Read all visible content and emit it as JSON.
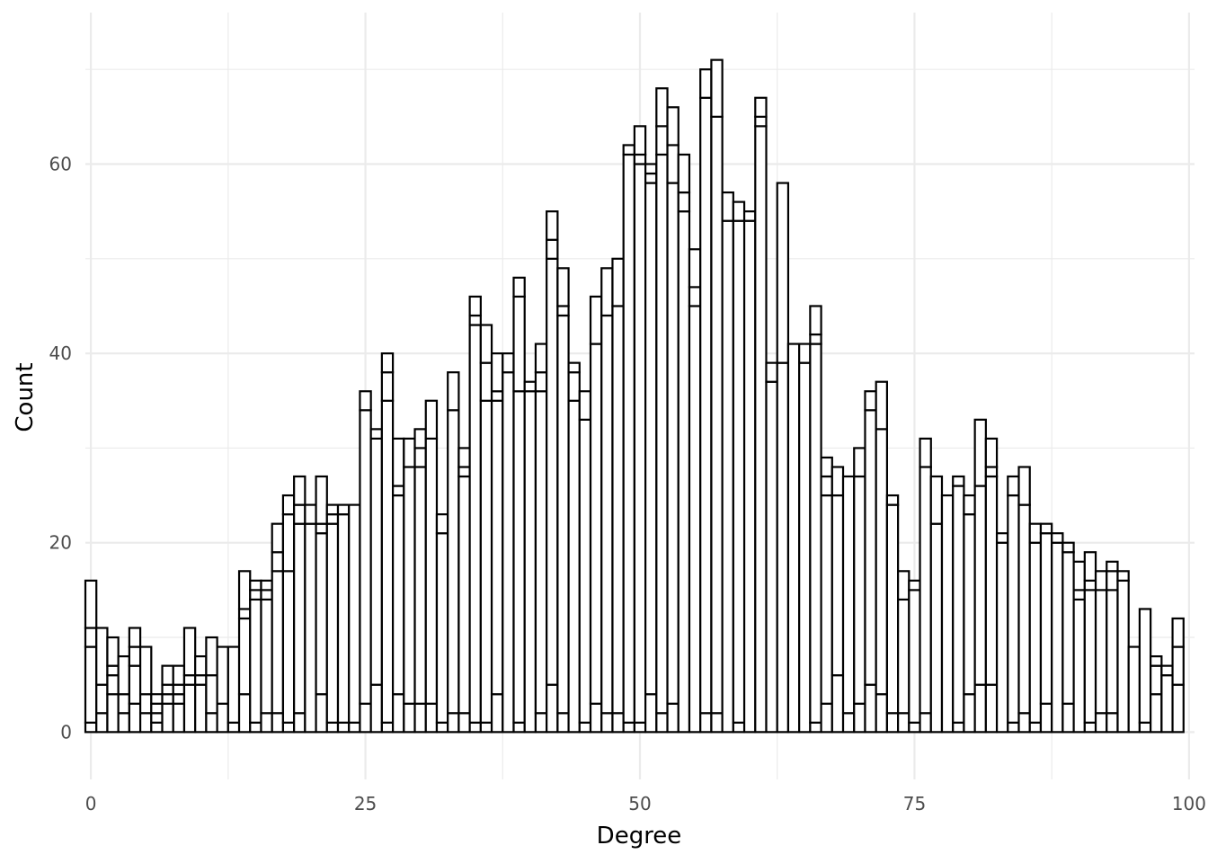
{
  "chart_data": {
    "type": "bar",
    "subtype": "stacked-histogram",
    "title": "",
    "xlabel": "Degree",
    "ylabel": "Count",
    "xlim": [
      -0.5,
      100.5
    ],
    "ylim": [
      -5,
      76
    ],
    "x_ticks": [
      0,
      25,
      50,
      75,
      100
    ],
    "x_tick_labels": [
      "0",
      "25",
      "50",
      "75",
      "100"
    ],
    "y_ticks": [
      0,
      20,
      40,
      60
    ],
    "y_tick_labels": [
      "0",
      "20",
      "40",
      "60"
    ],
    "grid": true,
    "bar_fill": "#ffffff",
    "bar_stroke": "#000000",
    "grid_color": "#ebebeb",
    "x": [
      0,
      1,
      2,
      3,
      4,
      5,
      6,
      7,
      8,
      9,
      10,
      11,
      12,
      13,
      14,
      15,
      16,
      17,
      18,
      19,
      20,
      21,
      22,
      23,
      24,
      25,
      26,
      27,
      28,
      29,
      30,
      31,
      32,
      33,
      34,
      35,
      36,
      37,
      38,
      39,
      40,
      41,
      42,
      43,
      44,
      45,
      46,
      47,
      48,
      49,
      50,
      51,
      52,
      53,
      54,
      55,
      56,
      57,
      58,
      59,
      60,
      61,
      62,
      63,
      64,
      65,
      66,
      67,
      68,
      69,
      70,
      71,
      72,
      73,
      74,
      75,
      76,
      77,
      78,
      79,
      80,
      81,
      82,
      83,
      84,
      85,
      86,
      87,
      88,
      89,
      90,
      91,
      92,
      93,
      94,
      95,
      96,
      97,
      98,
      99
    ],
    "series": [
      {
        "values": [
          1,
          2,
          4,
          2,
          3,
          2,
          1,
          3,
          3,
          5,
          5,
          2,
          3,
          1,
          4,
          1,
          2,
          2,
          1,
          2,
          0,
          4,
          1,
          1,
          1,
          3,
          5,
          1,
          4,
          3,
          3,
          3,
          1,
          2,
          2,
          1,
          1,
          4,
          0,
          1,
          0,
          2,
          5,
          2,
          0,
          1,
          3,
          2,
          2,
          1,
          1,
          4,
          2,
          3,
          0,
          0,
          2,
          2,
          0,
          1,
          0,
          0,
          0,
          0,
          0,
          0,
          1,
          3,
          6,
          2,
          3,
          5,
          4,
          2,
          2,
          1,
          2,
          0,
          0,
          1,
          4,
          5,
          5,
          0,
          1,
          2,
          1,
          3,
          0,
          3,
          0,
          1,
          2,
          2,
          0,
          0,
          1,
          4,
          0,
          5
        ]
      },
      {
        "values": [
          8,
          3,
          2,
          2,
          4,
          0,
          1,
          1,
          1,
          1,
          1,
          4,
          0,
          0,
          8,
          13,
          12,
          15,
          16,
          20,
          22,
          17,
          21,
          22,
          23,
          31,
          26,
          34,
          21,
          25,
          25,
          28,
          20,
          32,
          25,
          42,
          34,
          31,
          38,
          35,
          36,
          34,
          45,
          42,
          35,
          32,
          38,
          42,
          43,
          60,
          59,
          54,
          59,
          55,
          55,
          45,
          65,
          63,
          54,
          53,
          54,
          64,
          37,
          39,
          41,
          39,
          40,
          22,
          19,
          25,
          24,
          29,
          28,
          22,
          12,
          14,
          26,
          22,
          25,
          25,
          19,
          21,
          22,
          20,
          24,
          22,
          19,
          18,
          20,
          16,
          14,
          14,
          13,
          13,
          16,
          9,
          12,
          3,
          6,
          4
        ]
      },
      {
        "values": [
          2,
          6,
          1,
          0,
          2,
          2,
          1,
          1,
          1,
          0,
          0,
          0,
          0,
          0,
          1,
          1,
          1,
          2,
          6,
          2,
          0,
          1,
          1,
          0,
          0,
          0,
          1,
          3,
          1,
          0,
          2,
          0,
          0,
          0,
          1,
          1,
          4,
          1,
          0,
          10,
          0,
          2,
          2,
          1,
          3,
          0,
          0,
          0,
          0,
          0,
          1,
          1,
          3,
          4,
          2,
          2,
          3,
          0,
          0,
          0,
          0,
          1,
          0,
          0,
          0,
          0,
          1,
          2,
          0,
          0,
          0,
          0,
          0,
          0,
          0,
          0,
          0,
          0,
          0,
          0,
          0,
          0,
          1,
          0,
          0,
          0,
          0,
          0,
          0,
          0,
          1,
          1,
          0,
          2,
          0,
          0,
          0,
          0,
          0,
          0
        ]
      },
      {
        "values": [
          5,
          0,
          3,
          4,
          2,
          5,
          1,
          2,
          2,
          5,
          2,
          4,
          6,
          8,
          4,
          1,
          1,
          3,
          2,
          3,
          2,
          5,
          1,
          1,
          0,
          2,
          0,
          2,
          5,
          3,
          2,
          4,
          2,
          4,
          2,
          2,
          4,
          4,
          2,
          2,
          1,
          3,
          3,
          4,
          1,
          3,
          5,
          5,
          5,
          1,
          3,
          1,
          4,
          4,
          4,
          4,
          0,
          6,
          3,
          2,
          1,
          2,
          2,
          19,
          0,
          2,
          3,
          2,
          3,
          0,
          3,
          2,
          5,
          1,
          3,
          1,
          3,
          5,
          0,
          1,
          2,
          7,
          3,
          1,
          2,
          4,
          2,
          1,
          1,
          1,
          3,
          3,
          2,
          1,
          1,
          0,
          0,
          1,
          1,
          3
        ]
      },
      {
        "values": [
          0,
          0,
          0,
          0,
          0,
          0,
          0,
          0,
          0,
          0,
          0,
          0,
          0,
          0,
          0,
          0,
          0,
          0,
          0,
          0,
          0,
          0,
          0,
          0,
          0,
          0,
          0,
          0,
          0,
          0,
          0,
          0,
          0,
          0,
          0,
          0,
          0,
          0,
          0,
          0,
          0,
          0,
          0,
          0,
          0,
          0,
          0,
          0,
          0,
          0,
          0,
          0,
          0,
          0,
          0,
          0,
          0,
          0,
          0,
          0,
          0,
          0,
          0,
          0,
          0,
          0,
          0,
          0,
          0,
          0,
          0,
          0,
          0,
          0,
          0,
          0,
          0,
          0,
          0,
          0,
          0,
          0,
          0,
          0,
          0,
          0,
          0,
          0,
          0,
          0,
          0,
          0,
          0,
          0,
          0,
          0,
          0,
          0,
          0,
          0
        ]
      }
    ]
  }
}
